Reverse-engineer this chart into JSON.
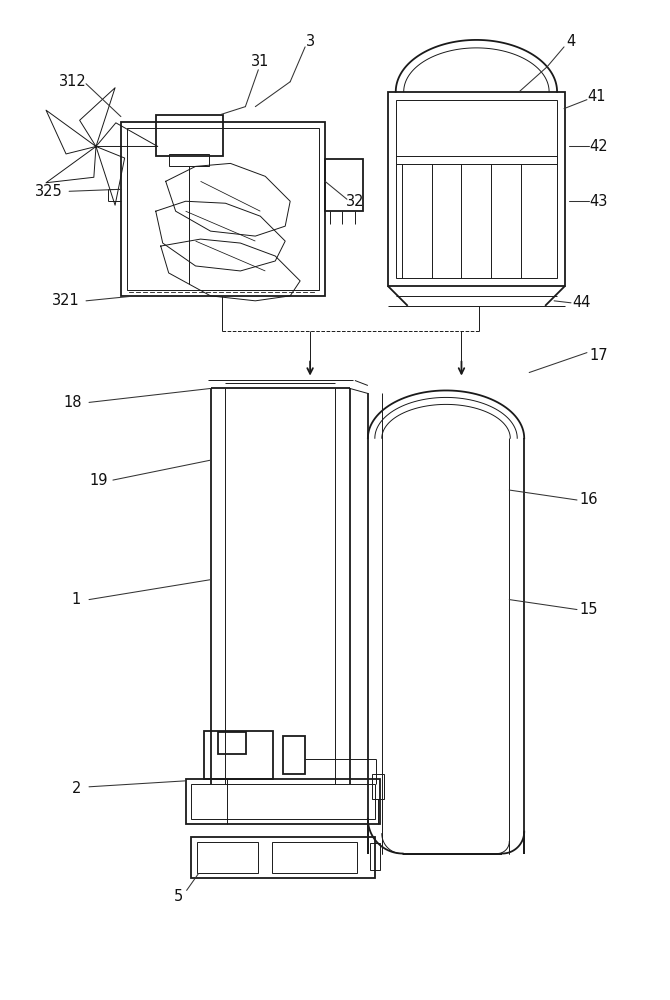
{
  "bg_color": "#ffffff",
  "line_color": "#1a1a1a",
  "lw": 1.3,
  "tlw": 0.7,
  "label_fontsize": 10.5,
  "label_color": "#111111"
}
